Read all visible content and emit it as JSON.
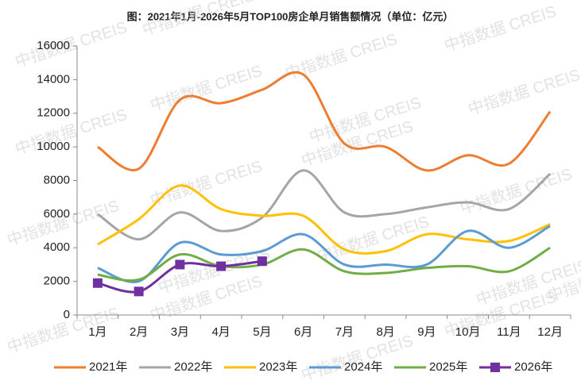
{
  "chart_data": {
    "type": "line",
    "title": "图：2021年1月-2026年5月TOP100房企单月销售额情况（单位：亿元）",
    "watermark": "中指数据 CREIS",
    "categories": [
      "1月",
      "2月",
      "3月",
      "4月",
      "5月",
      "6月",
      "7月",
      "8月",
      "9月",
      "10月",
      "11月",
      "12月"
    ],
    "series": [
      {
        "name": "2021年",
        "color": "#ed7d31",
        "values": [
          10000,
          8700,
          12800,
          12600,
          13400,
          14300,
          10200,
          10000,
          8600,
          9500,
          9000,
          12100
        ]
      },
      {
        "name": "2022年",
        "color": "#a5a5a5",
        "values": [
          6000,
          4500,
          6100,
          5000,
          5800,
          8600,
          6100,
          6000,
          6400,
          6700,
          6300,
          8400
        ]
      },
      {
        "name": "2023年",
        "color": "#ffc000",
        "values": [
          4200,
          5700,
          7700,
          6300,
          5900,
          5900,
          3900,
          3800,
          4800,
          4500,
          4400,
          5400
        ]
      },
      {
        "name": "2024年",
        "color": "#5b9bd5",
        "values": [
          2800,
          2000,
          4300,
          3600,
          3800,
          4800,
          3000,
          3000,
          3000,
          5000,
          4000,
          5300
        ]
      },
      {
        "name": "2025年",
        "color": "#70ad47",
        "values": [
          2400,
          2100,
          3600,
          2900,
          3000,
          3900,
          2600,
          2500,
          2800,
          2900,
          2600,
          4000
        ]
      },
      {
        "name": "2026年",
        "color": "#7030a0",
        "marker": "square",
        "values": [
          1900,
          1400,
          3000,
          2900,
          3200,
          null,
          null,
          null,
          null,
          null,
          null,
          null
        ]
      }
    ],
    "ylim": [
      0,
      16000
    ],
    "yticks": [
      0,
      2000,
      4000,
      6000,
      8000,
      10000,
      12000,
      14000,
      16000
    ],
    "grid": false,
    "legend": "bottom"
  }
}
